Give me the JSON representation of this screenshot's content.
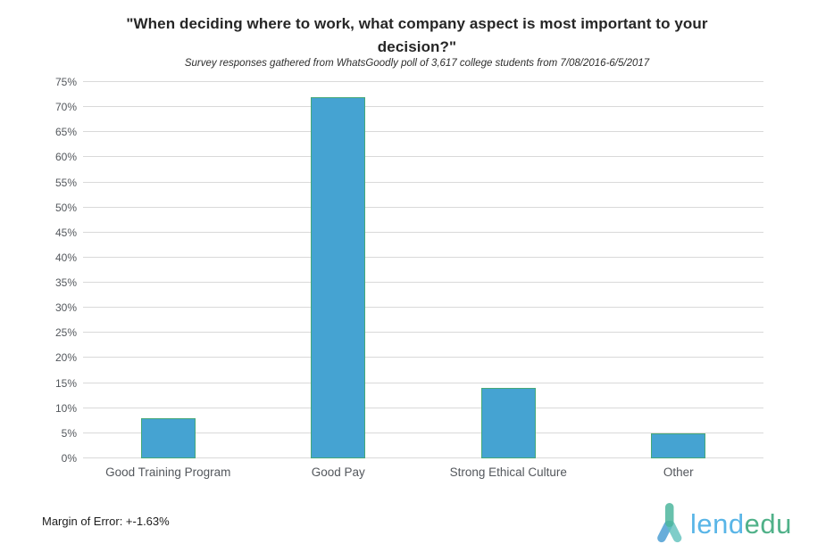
{
  "chart_data": {
    "type": "bar",
    "title": "\"When deciding where to work, what company aspect is most important to your decision?\"",
    "subtitle": "Survey responses gathered from WhatsGoodly poll of 3,617 college students from 7/08/2016-6/5/2017",
    "categories": [
      "Good Training Program",
      "Good Pay",
      "Strong Ethical Culture",
      "Other"
    ],
    "values": [
      8,
      72,
      14,
      5
    ],
    "unit": "%",
    "xlabel": "",
    "ylabel": "",
    "ylim": [
      0,
      75
    ],
    "y_tick_step": 5,
    "y_tick_labels": [
      "0%",
      "5%",
      "10%",
      "15%",
      "20%",
      "25%",
      "30%",
      "35%",
      "40%",
      "45%",
      "50%",
      "55%",
      "60%",
      "65%",
      "70%",
      "75%"
    ],
    "grid": true,
    "legend": false,
    "bar_color": "#45a3d2",
    "bar_border_color": "#46a878",
    "gridline_color": "#d9d9d9"
  },
  "footer": {
    "margin_of_error": "Margin of Error: +-1.63%",
    "logo": {
      "text_lend": "lend",
      "text_edu": "edu",
      "lend_color": "#59b5e7",
      "edu_color": "#50b189",
      "icon_torso_color": "#4db69e",
      "icon_left_leg_color": "#4d9fd3",
      "icon_right_leg_color": "#5fc0bb"
    }
  }
}
